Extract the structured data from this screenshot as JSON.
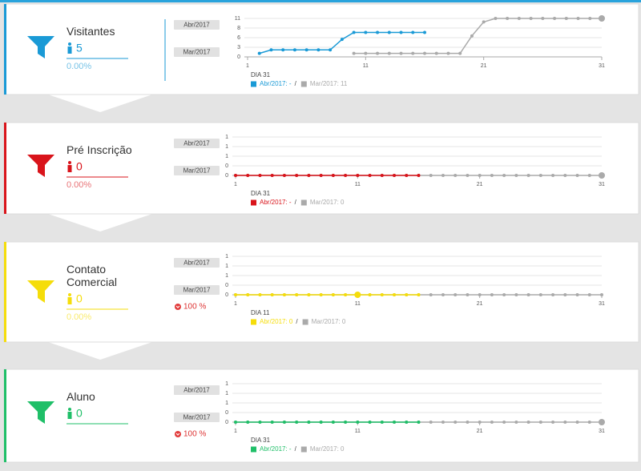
{
  "panels": [
    {
      "title": "Visitantes",
      "count": "5",
      "percent": "0.00%",
      "day_label": "DIA 31",
      "separator": "/"
    },
    {
      "title": "Pré Inscrição",
      "count": "0",
      "percent": "0.00%",
      "day_label": "DIA 31",
      "separator": "/"
    },
    {
      "title": "Contato Comercial",
      "count": "0",
      "percent": "0.00%",
      "change": "100 %",
      "day_label": "DIA 11",
      "separator": "/"
    },
    {
      "title": "Aluno",
      "count": "0",
      "change": "100 %",
      "day_label": "DIA 31",
      "separator": "/"
    }
  ],
  "chart_data": [
    {
      "type": "line",
      "x": [
        1,
        2,
        3,
        4,
        5,
        6,
        7,
        8,
        9,
        10,
        11,
        12,
        13,
        14,
        15,
        16,
        17,
        18,
        19,
        20,
        21,
        22,
        23,
        24,
        25,
        26,
        27,
        28,
        29,
        30,
        31
      ],
      "xlim": [
        1,
        31
      ],
      "xticks": [
        1,
        11,
        21,
        31
      ],
      "ylim": [
        0,
        11
      ],
      "yticks": [
        0,
        {
          "value": 2.75,
          "label": "3"
        },
        {
          "value": 5.5,
          "label": "6"
        },
        {
          "value": 8.25,
          "label": "8"
        },
        11
      ],
      "series": [
        {
          "name": "Abr/2017",
          "color": "#1a9ad6",
          "values": [
            null,
            1,
            2,
            2,
            2,
            2,
            2,
            2,
            5,
            7,
            7,
            7,
            7,
            7,
            7,
            7,
            null,
            null,
            null,
            null,
            null,
            null,
            null,
            null,
            null,
            null,
            null,
            null,
            null,
            null,
            null
          ]
        },
        {
          "name": "Mar/2017",
          "color": "#aaaaaa",
          "values": [
            null,
            null,
            null,
            null,
            null,
            null,
            null,
            null,
            null,
            1,
            1,
            1,
            1,
            1,
            1,
            1,
            1,
            1,
            1,
            6,
            10,
            11,
            11,
            11,
            11,
            11,
            11,
            11,
            11,
            11,
            11
          ]
        }
      ],
      "legend": [
        "Abr/2017: -",
        "Mar/2017: 11"
      ],
      "highlight": [
        1,
        30
      ],
      "grid": true
    },
    {
      "type": "line",
      "x": [
        1,
        2,
        3,
        4,
        5,
        6,
        7,
        8,
        9,
        10,
        11,
        12,
        13,
        14,
        15,
        16,
        17,
        18,
        19,
        20,
        21,
        22,
        23,
        24,
        25,
        26,
        27,
        28,
        29,
        30,
        31
      ],
      "xlim": [
        1,
        31
      ],
      "xticks": [
        1,
        11,
        21,
        31
      ],
      "ylim": [
        0,
        1
      ],
      "yticks": [
        0,
        {
          "value": 0.25,
          "label": "0"
        },
        {
          "value": 0.5,
          "label": "1"
        },
        {
          "value": 0.75,
          "label": "1"
        },
        1
      ],
      "series": [
        {
          "name": "Abr/2017",
          "color": "#d9141b",
          "values": [
            0,
            0,
            0,
            0,
            0,
            0,
            0,
            0,
            0,
            0,
            0,
            0,
            0,
            0,
            0,
            0,
            null,
            null,
            null,
            null,
            null,
            null,
            null,
            null,
            null,
            null,
            null,
            null,
            null,
            null,
            null
          ]
        },
        {
          "name": "Mar/2017",
          "color": "#aaaaaa",
          "values": [
            0,
            0,
            0,
            0,
            0,
            0,
            0,
            0,
            0,
            0,
            0,
            0,
            0,
            0,
            0,
            0,
            0,
            0,
            0,
            0,
            0,
            0,
            0,
            0,
            0,
            0,
            0,
            0,
            0,
            0,
            0
          ]
        }
      ],
      "legend": [
        "Abr/2017: -",
        "Mar/2017: 0"
      ],
      "highlight": [
        1,
        30
      ],
      "grid": true
    },
    {
      "type": "line",
      "x": [
        1,
        2,
        3,
        4,
        5,
        6,
        7,
        8,
        9,
        10,
        11,
        12,
        13,
        14,
        15,
        16,
        17,
        18,
        19,
        20,
        21,
        22,
        23,
        24,
        25,
        26,
        27,
        28,
        29,
        30,
        31
      ],
      "xlim": [
        1,
        31
      ],
      "xticks": [
        1,
        11,
        21,
        31
      ],
      "ylim": [
        0,
        1
      ],
      "yticks": [
        0,
        {
          "value": 0.25,
          "label": "0"
        },
        {
          "value": 0.5,
          "label": "1"
        },
        {
          "value": 0.75,
          "label": "1"
        },
        1
      ],
      "series": [
        {
          "name": "Abr/2017",
          "color": "#f5dd0a",
          "values": [
            0,
            0,
            0,
            0,
            0,
            0,
            0,
            0,
            0,
            0,
            0,
            0,
            0,
            0,
            0,
            0,
            null,
            null,
            null,
            null,
            null,
            null,
            null,
            null,
            null,
            null,
            null,
            null,
            null,
            null,
            null
          ]
        },
        {
          "name": "Mar/2017",
          "color": "#aaaaaa",
          "values": [
            0,
            0,
            0,
            0,
            0,
            0,
            0,
            0,
            0,
            0,
            0,
            0,
            0,
            0,
            0,
            0,
            0,
            0,
            0,
            0,
            0,
            0,
            0,
            0,
            0,
            0,
            0,
            0,
            0,
            0,
            0
          ]
        }
      ],
      "legend": [
        "Abr/2017: 0",
        "Mar/2017: 0"
      ],
      "highlight": [
        0,
        10
      ],
      "grid": true
    },
    {
      "type": "line",
      "x": [
        1,
        2,
        3,
        4,
        5,
        6,
        7,
        8,
        9,
        10,
        11,
        12,
        13,
        14,
        15,
        16,
        17,
        18,
        19,
        20,
        21,
        22,
        23,
        24,
        25,
        26,
        27,
        28,
        29,
        30,
        31
      ],
      "xlim": [
        1,
        31
      ],
      "xticks": [
        1,
        11,
        21,
        31
      ],
      "ylim": [
        0,
        1
      ],
      "yticks": [
        0,
        {
          "value": 0.25,
          "label": "0"
        },
        {
          "value": 0.5,
          "label": "1"
        },
        {
          "value": 0.75,
          "label": "1"
        },
        1
      ],
      "series": [
        {
          "name": "Abr/2017",
          "color": "#1fbf68",
          "values": [
            0,
            0,
            0,
            0,
            0,
            0,
            0,
            0,
            0,
            0,
            0,
            0,
            0,
            0,
            0,
            0,
            null,
            null,
            null,
            null,
            null,
            null,
            null,
            null,
            null,
            null,
            null,
            null,
            null,
            null,
            null
          ]
        },
        {
          "name": "Mar/2017",
          "color": "#aaaaaa",
          "values": [
            0,
            0,
            0,
            0,
            0,
            0,
            0,
            0,
            0,
            0,
            0,
            0,
            0,
            0,
            0,
            0,
            0,
            0,
            0,
            0,
            0,
            0,
            0,
            0,
            0,
            0,
            0,
            0,
            0,
            0,
            0
          ]
        }
      ],
      "legend": [
        "Abr/2017: -",
        "Mar/2017: 0"
      ],
      "highlight": [
        1,
        30
      ],
      "grid": true
    }
  ]
}
